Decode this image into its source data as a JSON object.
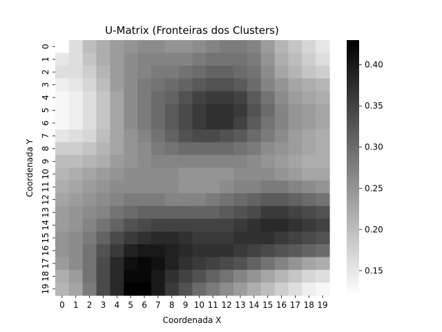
{
  "chart_data": {
    "type": "heatmap",
    "title": "U-Matrix (Fronteiras dos Clusters)",
    "xlabel": "Coordenada X",
    "ylabel": "Coordenada Y",
    "x_ticks": [
      "0",
      "1",
      "2",
      "3",
      "4",
      "5",
      "6",
      "7",
      "8",
      "9",
      "10",
      "11",
      "12",
      "13",
      "14",
      "15",
      "16",
      "17",
      "18",
      "19"
    ],
    "y_ticks": [
      "0",
      "1",
      "2",
      "3",
      "4",
      "5",
      "6",
      "7",
      "8",
      "9",
      "10",
      "11",
      "12",
      "13",
      "14",
      "15",
      "16",
      "17",
      "18",
      "19"
    ],
    "colorscale": "Greys",
    "colorbar_ticks": [
      "0.15",
      "0.20",
      "0.25",
      "0.30",
      "0.35",
      "0.40"
    ],
    "vmin": 0.12,
    "vmax": 0.43,
    "grid": false,
    "values": [
      [
        0.12,
        0.16,
        0.2,
        0.22,
        0.24,
        0.25,
        0.26,
        0.26,
        0.25,
        0.25,
        0.26,
        0.27,
        0.28,
        0.28,
        0.27,
        0.24,
        0.21,
        0.19,
        0.17,
        0.15
      ],
      [
        0.15,
        0.16,
        0.19,
        0.22,
        0.24,
        0.26,
        0.27,
        0.27,
        0.27,
        0.27,
        0.28,
        0.29,
        0.29,
        0.29,
        0.28,
        0.25,
        0.22,
        0.2,
        0.18,
        0.16
      ],
      [
        0.16,
        0.16,
        0.18,
        0.21,
        0.24,
        0.26,
        0.27,
        0.28,
        0.28,
        0.29,
        0.3,
        0.31,
        0.31,
        0.3,
        0.29,
        0.26,
        0.23,
        0.21,
        0.19,
        0.18
      ],
      [
        0.14,
        0.15,
        0.17,
        0.2,
        0.24,
        0.26,
        0.28,
        0.29,
        0.3,
        0.31,
        0.32,
        0.33,
        0.33,
        0.32,
        0.3,
        0.27,
        0.25,
        0.23,
        0.22,
        0.21
      ],
      [
        0.13,
        0.14,
        0.16,
        0.19,
        0.23,
        0.26,
        0.28,
        0.3,
        0.31,
        0.33,
        0.35,
        0.36,
        0.36,
        0.35,
        0.32,
        0.29,
        0.26,
        0.24,
        0.23,
        0.22
      ],
      [
        0.13,
        0.14,
        0.16,
        0.19,
        0.23,
        0.26,
        0.28,
        0.3,
        0.32,
        0.34,
        0.36,
        0.37,
        0.37,
        0.36,
        0.33,
        0.3,
        0.27,
        0.25,
        0.24,
        0.23
      ],
      [
        0.13,
        0.14,
        0.16,
        0.19,
        0.23,
        0.26,
        0.28,
        0.3,
        0.32,
        0.34,
        0.36,
        0.37,
        0.37,
        0.35,
        0.32,
        0.29,
        0.27,
        0.25,
        0.24,
        0.23
      ],
      [
        0.15,
        0.16,
        0.17,
        0.2,
        0.23,
        0.25,
        0.27,
        0.29,
        0.31,
        0.33,
        0.34,
        0.34,
        0.33,
        0.32,
        0.3,
        0.28,
        0.26,
        0.24,
        0.23,
        0.22
      ],
      [
        0.18,
        0.18,
        0.19,
        0.21,
        0.23,
        0.25,
        0.26,
        0.28,
        0.29,
        0.3,
        0.3,
        0.3,
        0.3,
        0.29,
        0.28,
        0.26,
        0.25,
        0.24,
        0.23,
        0.22
      ],
      [
        0.2,
        0.2,
        0.21,
        0.22,
        0.24,
        0.25,
        0.26,
        0.27,
        0.27,
        0.27,
        0.27,
        0.27,
        0.27,
        0.27,
        0.26,
        0.25,
        0.24,
        0.23,
        0.22,
        0.22
      ],
      [
        0.21,
        0.22,
        0.23,
        0.24,
        0.25,
        0.26,
        0.26,
        0.26,
        0.26,
        0.25,
        0.25,
        0.25,
        0.25,
        0.26,
        0.26,
        0.26,
        0.25,
        0.24,
        0.23,
        0.23
      ],
      [
        0.22,
        0.23,
        0.24,
        0.25,
        0.26,
        0.26,
        0.26,
        0.26,
        0.26,
        0.25,
        0.25,
        0.25,
        0.26,
        0.27,
        0.27,
        0.28,
        0.28,
        0.27,
        0.26,
        0.25
      ],
      [
        0.23,
        0.24,
        0.25,
        0.26,
        0.27,
        0.28,
        0.28,
        0.28,
        0.27,
        0.27,
        0.27,
        0.28,
        0.29,
        0.3,
        0.31,
        0.32,
        0.32,
        0.31,
        0.3,
        0.29
      ],
      [
        0.24,
        0.25,
        0.26,
        0.27,
        0.29,
        0.3,
        0.31,
        0.31,
        0.31,
        0.31,
        0.31,
        0.31,
        0.32,
        0.33,
        0.34,
        0.36,
        0.36,
        0.35,
        0.34,
        0.33
      ],
      [
        0.24,
        0.25,
        0.27,
        0.29,
        0.31,
        0.33,
        0.34,
        0.35,
        0.35,
        0.35,
        0.35,
        0.35,
        0.35,
        0.36,
        0.37,
        0.38,
        0.38,
        0.37,
        0.36,
        0.35
      ],
      [
        0.25,
        0.26,
        0.28,
        0.31,
        0.34,
        0.36,
        0.37,
        0.38,
        0.38,
        0.37,
        0.36,
        0.36,
        0.36,
        0.37,
        0.37,
        0.37,
        0.36,
        0.35,
        0.34,
        0.33
      ],
      [
        0.25,
        0.26,
        0.29,
        0.33,
        0.36,
        0.39,
        0.4,
        0.4,
        0.39,
        0.38,
        0.37,
        0.37,
        0.37,
        0.36,
        0.35,
        0.34,
        0.33,
        0.32,
        0.31,
        0.3
      ],
      [
        0.24,
        0.26,
        0.29,
        0.34,
        0.38,
        0.41,
        0.42,
        0.41,
        0.39,
        0.37,
        0.36,
        0.35,
        0.34,
        0.33,
        0.31,
        0.29,
        0.27,
        0.25,
        0.23,
        0.22
      ],
      [
        0.22,
        0.24,
        0.29,
        0.34,
        0.38,
        0.42,
        0.42,
        0.4,
        0.37,
        0.35,
        0.33,
        0.31,
        0.29,
        0.27,
        0.25,
        0.23,
        0.21,
        0.19,
        0.17,
        0.16
      ],
      [
        0.21,
        0.23,
        0.28,
        0.34,
        0.38,
        0.43,
        0.43,
        0.4,
        0.36,
        0.33,
        0.3,
        0.28,
        0.26,
        0.24,
        0.22,
        0.2,
        0.18,
        0.16,
        0.14,
        0.13
      ]
    ]
  }
}
